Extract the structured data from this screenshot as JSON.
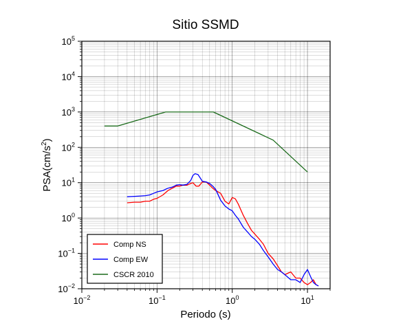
{
  "chart_data": {
    "type": "line",
    "title": "Sitio SSMD",
    "xlabel": "Periodo (s)",
    "ylabel_main": "PSA(cm/s",
    "ylabel_sup": "2",
    "ylabel_tail": ")",
    "x_scale": "log",
    "y_scale": "log",
    "xlim": [
      0.01,
      20
    ],
    "ylim": [
      0.01,
      100000
    ],
    "grid": true,
    "legend_position": "bottom-left",
    "x_ticks": [
      {
        "value": 0.01,
        "base": "10",
        "exp": "−2"
      },
      {
        "value": 0.1,
        "base": "10",
        "exp": "−1"
      },
      {
        "value": 1,
        "base": "10",
        "exp": "0"
      },
      {
        "value": 10,
        "base": "10",
        "exp": "1"
      }
    ],
    "y_ticks": [
      {
        "value": 0.01,
        "base": "10",
        "exp": "−2"
      },
      {
        "value": 0.1,
        "base": "10",
        "exp": "−1"
      },
      {
        "value": 1,
        "base": "10",
        "exp": "0"
      },
      {
        "value": 10,
        "base": "10",
        "exp": "1"
      },
      {
        "value": 100,
        "base": "10",
        "exp": "2"
      },
      {
        "value": 1000,
        "base": "10",
        "exp": "3"
      },
      {
        "value": 10000,
        "base": "10",
        "exp": "4"
      },
      {
        "value": 100000,
        "base": "10",
        "exp": "5"
      }
    ],
    "series": [
      {
        "name": "Comp NS",
        "color": "#ff0000",
        "x": [
          0.04,
          0.05,
          0.06,
          0.07,
          0.08,
          0.09,
          0.1,
          0.12,
          0.14,
          0.16,
          0.18,
          0.2,
          0.22,
          0.25,
          0.28,
          0.3,
          0.33,
          0.36,
          0.4,
          0.45,
          0.5,
          0.55,
          0.6,
          0.7,
          0.8,
          0.9,
          1.0,
          1.1,
          1.2,
          1.4,
          1.6,
          1.8,
          2.0,
          2.3,
          2.6,
          3.0,
          3.5,
          4.0,
          4.5,
          5.0,
          6.0,
          7.0,
          8.0,
          9.0,
          10.0,
          11.0,
          12.0,
          13.0,
          14.0
        ],
        "y": [
          2.7,
          2.8,
          2.8,
          3.0,
          3.0,
          3.4,
          3.6,
          4.5,
          6.0,
          7.0,
          8.0,
          8.0,
          8.5,
          8.5,
          9.5,
          10.0,
          8.0,
          8.0,
          10.5,
          10.5,
          8.5,
          7.0,
          6.0,
          5.0,
          3.0,
          2.5,
          3.8,
          3.5,
          2.5,
          1.2,
          0.7,
          0.45,
          0.35,
          0.25,
          0.18,
          0.1,
          0.07,
          0.045,
          0.03,
          0.025,
          0.03,
          0.02,
          0.02,
          0.015,
          0.013,
          0.015,
          0.018,
          0.013,
          0.012
        ]
      },
      {
        "name": "Comp EW",
        "color": "#0000ff",
        "x": [
          0.04,
          0.05,
          0.06,
          0.07,
          0.08,
          0.09,
          0.1,
          0.12,
          0.14,
          0.16,
          0.18,
          0.2,
          0.22,
          0.25,
          0.28,
          0.3,
          0.32,
          0.35,
          0.38,
          0.4,
          0.45,
          0.5,
          0.55,
          0.6,
          0.7,
          0.8,
          0.9,
          1.0,
          1.1,
          1.2,
          1.4,
          1.6,
          1.8,
          2.0,
          2.3,
          2.6,
          3.0,
          3.5,
          4.0,
          4.5,
          5.0,
          6.0,
          7.0,
          8.0,
          9.0,
          10.0,
          11.0,
          12.0,
          13.0,
          14.0
        ],
        "y": [
          4.0,
          4.1,
          4.2,
          4.3,
          4.5,
          5.0,
          5.5,
          6.0,
          7.0,
          7.5,
          8.5,
          8.8,
          8.5,
          9.0,
          11.5,
          16.0,
          18.0,
          17.0,
          13.0,
          11.0,
          10.5,
          9.5,
          8.0,
          6.5,
          3.2,
          2.2,
          1.8,
          1.6,
          1.2,
          0.95,
          0.55,
          0.4,
          0.3,
          0.25,
          0.18,
          0.12,
          0.08,
          0.05,
          0.035,
          0.03,
          0.025,
          0.018,
          0.018,
          0.015,
          0.025,
          0.035,
          0.022,
          0.015,
          0.013,
          0.012
        ]
      },
      {
        "name": "CSCR 2010",
        "color": "#1a6a1a",
        "x": [
          0.02,
          0.03,
          0.13,
          0.56,
          3.5,
          10.0
        ],
        "y": [
          400,
          400,
          1000,
          1000,
          160,
          20
        ]
      }
    ]
  }
}
